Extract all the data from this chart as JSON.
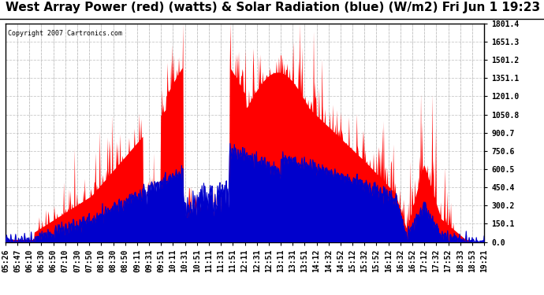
{
  "title": "West Array Power (red) (watts) & Solar Radiation (blue) (W/m2) Fri Jun 1 19:23",
  "copyright": "Copyright 2007 Cartronics.com",
  "background_color": "#ffffff",
  "plot_bg_color": "#ffffff",
  "yticks": [
    0.0,
    150.1,
    300.2,
    450.4,
    600.5,
    750.6,
    900.7,
    1050.8,
    1201.0,
    1351.1,
    1501.2,
    1651.3,
    1801.4
  ],
  "ylim": [
    0.0,
    1801.4
  ],
  "x_labels": [
    "05:26",
    "05:47",
    "06:10",
    "06:30",
    "06:50",
    "07:10",
    "07:30",
    "07:50",
    "08:10",
    "08:30",
    "08:50",
    "09:11",
    "09:31",
    "09:51",
    "10:11",
    "10:31",
    "10:51",
    "11:11",
    "11:31",
    "11:51",
    "12:11",
    "12:31",
    "12:51",
    "13:11",
    "13:31",
    "13:51",
    "14:12",
    "14:32",
    "14:52",
    "15:12",
    "15:32",
    "15:52",
    "16:12",
    "16:32",
    "16:52",
    "17:12",
    "17:32",
    "17:52",
    "18:33",
    "18:53",
    "19:21"
  ],
  "red_color": "#ff0000",
  "blue_color": "#0000cc",
  "grid_color": "#bbbbbb",
  "title_fontsize": 11,
  "copyright_fontsize": 6,
  "tick_fontsize": 7,
  "seed": 12345
}
